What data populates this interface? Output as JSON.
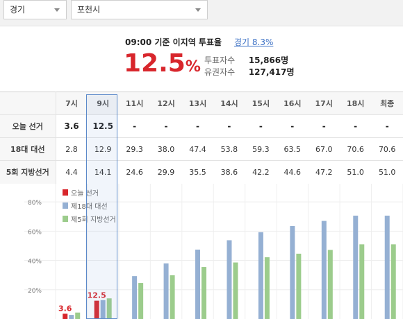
{
  "selects": {
    "region": "경기",
    "city": "포천시"
  },
  "summary": {
    "title": "09:00 기준 이지역 투표율",
    "link": "경기 8.3%",
    "rate": "12.5",
    "rate_unit": "%",
    "voters_label": "투표자수",
    "voters_value": "15,866명",
    "eligible_label": "유권자수",
    "eligible_value": "127,417명"
  },
  "table": {
    "columns": [
      "7시",
      "9시",
      "11시",
      "12시",
      "13시",
      "14시",
      "15시",
      "16시",
      "17시",
      "18시",
      "최종"
    ],
    "rows": [
      {
        "label": "오늘 선거",
        "values": [
          "3.6",
          "12.5",
          "-",
          "-",
          "-",
          "-",
          "-",
          "-",
          "-",
          "-",
          "-"
        ]
      },
      {
        "label": "18대 대선",
        "values": [
          "2.8",
          "12.9",
          "29.3",
          "38.0",
          "47.4",
          "53.8",
          "59.3",
          "63.5",
          "67.0",
          "70.6",
          "70.6"
        ]
      },
      {
        "label": "5회 지방선거",
        "values": [
          "4.4",
          "14.1",
          "24.6",
          "29.9",
          "35.5",
          "38.6",
          "42.2",
          "44.6",
          "47.2",
          "51.0",
          "51.0"
        ]
      }
    ]
  },
  "colors": {
    "today": "#d8262c",
    "pres18": "#95b0d3",
    "local5": "#9ccc8c",
    "highlight": "#5b89c9"
  },
  "chart_data": {
    "type": "bar",
    "categories": [
      "7시",
      "9시",
      "11시",
      "12시",
      "13시",
      "14시",
      "15시",
      "16시",
      "17시",
      "18시",
      "최종"
    ],
    "series": [
      {
        "name": "오늘 선거",
        "values": [
          3.6,
          12.5,
          null,
          null,
          null,
          null,
          null,
          null,
          null,
          null,
          null
        ]
      },
      {
        "name": "제18대 대선",
        "values": [
          2.8,
          12.9,
          29.3,
          38.0,
          47.4,
          53.8,
          59.3,
          63.5,
          67.0,
          70.6,
          70.6
        ]
      },
      {
        "name": "제5회 지방선거",
        "values": [
          4.4,
          14.1,
          24.6,
          29.9,
          35.5,
          38.6,
          42.2,
          44.6,
          47.2,
          51.0,
          51.0
        ]
      }
    ],
    "ylim": [
      0,
      90
    ],
    "yticks": [
      20,
      40,
      60,
      80
    ],
    "ytick_labels": [
      "20%",
      "40%",
      "60%",
      "80%"
    ],
    "data_labels": [
      "3.6",
      "12.5"
    ],
    "grid": true,
    "legend_position": "top-left"
  }
}
